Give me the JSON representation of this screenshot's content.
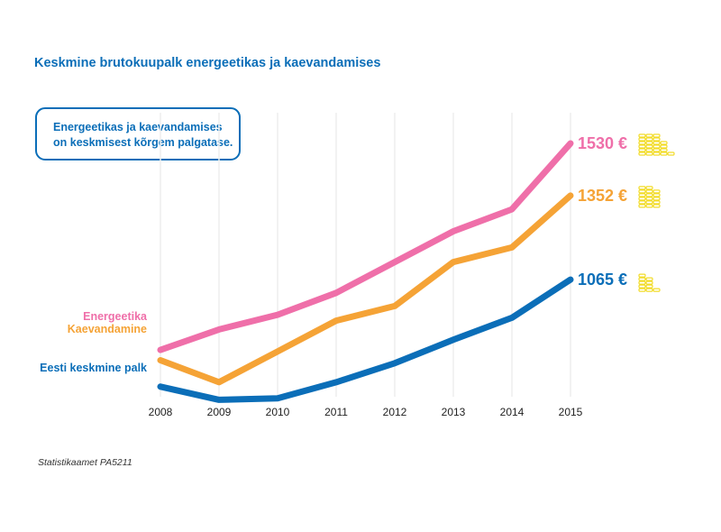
{
  "title": "Keskmine brutokuupalk energeetikas ja kaevandamises",
  "note": {
    "line1": "Energeetikas ja kaevandamises",
    "line2": "on keskmisest kõrgem palgatase."
  },
  "source": "Statistikaamet PA5211",
  "colors": {
    "pink": "#ef6fa9",
    "orange": "#f5a336",
    "blue": "#0b6eb8",
    "coin": "#f2dc2a",
    "grid": "#eeeeee"
  },
  "chart_data": {
    "type": "line",
    "x": [
      "2008",
      "2009",
      "2010",
      "2011",
      "2012",
      "2013",
      "2014",
      "2015"
    ],
    "ylim": [
      650,
      1650
    ],
    "grid": "vertical",
    "series": [
      {
        "name": "Energeetika",
        "color": "#ef6fa9",
        "values": [
          825,
          895,
          945,
          1020,
          1125,
          1230,
          1305,
          1530
        ],
        "end_label": "1530 €",
        "coins": "coins-large"
      },
      {
        "name": "Kaevandamine",
        "color": "#f5a336",
        "values": [
          790,
          715,
          820,
          925,
          975,
          1125,
          1175,
          1352
        ],
        "end_label": "1352 €",
        "coins": "coins-medium"
      },
      {
        "name": "Eesti keskmine palk",
        "color": "#0b6eb8",
        "values": [
          700,
          655,
          660,
          715,
          780,
          860,
          935,
          1065
        ],
        "end_label": "1065 €",
        "coins": "coins-small"
      }
    ]
  }
}
